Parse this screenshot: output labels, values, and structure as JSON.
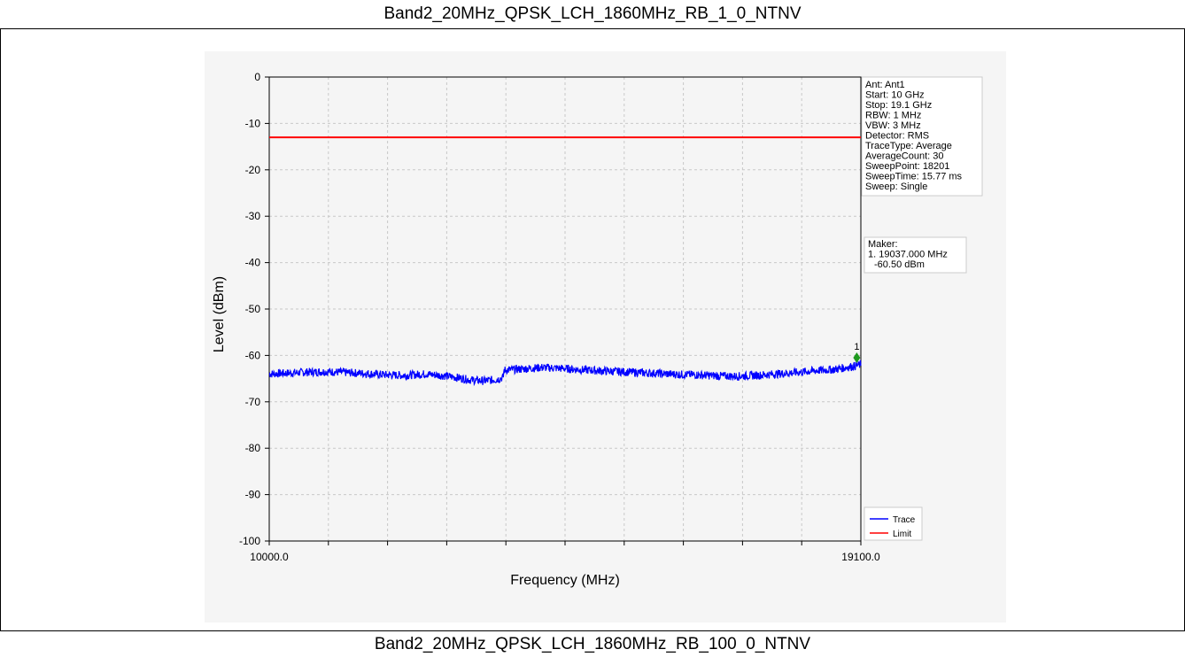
{
  "header": {
    "title": "Band2_20MHz_QPSK_LCH_1860MHz_RB_1_0_NTNV"
  },
  "footer": {
    "title": "Band2_20MHz_QPSK_LCH_1860MHz_RB_100_0_NTNV"
  },
  "chart_data": {
    "type": "line",
    "xlabel": "Frequency (MHz)",
    "ylabel": "Level (dBm)",
    "xlim": [
      10000.0,
      19100.0
    ],
    "ylim": [
      -100,
      0
    ],
    "x_tick_labels": [
      "10000.0",
      "19100.0"
    ],
    "y_ticks": [
      0,
      -10,
      -20,
      -30,
      -40,
      -50,
      -60,
      -70,
      -80,
      -90,
      -100
    ],
    "y_tick_labels": [
      "0",
      "-10",
      "-20",
      "-30",
      "-40",
      "-50",
      "-60",
      "-70",
      "-80",
      "-90",
      "-100"
    ],
    "grid": true,
    "legend_position": "bottom-right",
    "series": [
      {
        "name": "Trace",
        "color": "#0000ff",
        "x": [
          10000,
          10300,
          10600,
          10900,
          11200,
          11500,
          11800,
          12100,
          12400,
          12700,
          12900,
          13100,
          13300,
          13500,
          13600,
          13610,
          13900,
          14200,
          14500,
          14800,
          15100,
          15400,
          15700,
          16000,
          16300,
          16600,
          16900,
          17200,
          17500,
          17800,
          18100,
          18400,
          18700,
          19000,
          19100
        ],
        "y": [
          -64.0,
          -63.8,
          -63.6,
          -63.5,
          -63.7,
          -63.9,
          -64.2,
          -64.3,
          -64.0,
          -64.4,
          -64.8,
          -65.3,
          -65.5,
          -65.2,
          -64.7,
          -63.2,
          -62.9,
          -62.6,
          -62.8,
          -63.1,
          -63.3,
          -63.5,
          -63.7,
          -63.9,
          -64.1,
          -64.2,
          -64.4,
          -64.5,
          -64.3,
          -64.0,
          -63.7,
          -63.3,
          -63.0,
          -62.3,
          -62.0
        ]
      },
      {
        "name": "Limit",
        "color": "#ff0000",
        "x": [
          10000,
          19100
        ],
        "y": [
          -13,
          -13
        ]
      }
    ],
    "marker": {
      "label": "1",
      "x": 19037.0,
      "y": -60.5,
      "color": "#1f9a1f"
    },
    "info_box": [
      "Ant: Ant1",
      "Start: 10 GHz",
      "Stop: 19.1 GHz",
      "RBW: 1 MHz",
      "VBW: 3 MHz",
      "Detector: RMS",
      "TraceType: Average",
      "AverageCount: 30",
      "SweepPoint: 18201",
      "SweepTime: 15.77 ms",
      "Sweep: Single"
    ],
    "marker_box": [
      "Maker:",
      "1. 19037.000 MHz",
      "-60.50 dBm"
    ]
  }
}
